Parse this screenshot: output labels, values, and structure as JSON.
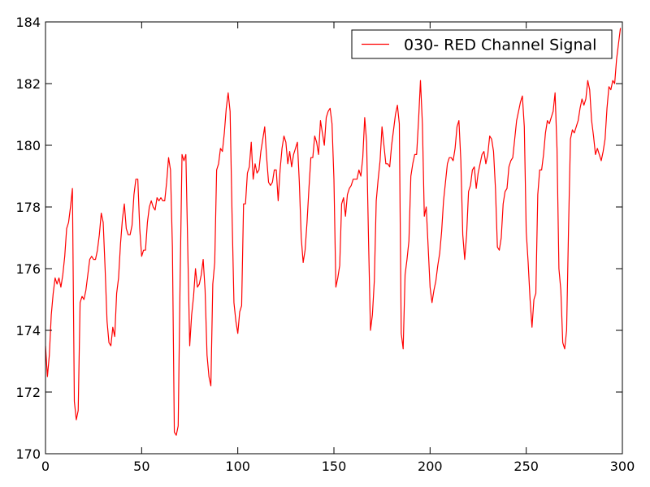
{
  "chart_data": {
    "type": "line",
    "title": "",
    "xlabel": "",
    "ylabel": "",
    "xlim": [
      0,
      300
    ],
    "ylim": [
      170,
      184
    ],
    "xticks": [
      0,
      50,
      100,
      150,
      200,
      250,
      300
    ],
    "yticks": [
      170,
      172,
      174,
      176,
      178,
      180,
      182,
      184
    ],
    "grid": false,
    "legend_position": "top-right",
    "series": [
      {
        "name": "030- RED Channel Signal",
        "color": "#ff0000",
        "x": [
          0,
          1,
          2,
          3,
          4,
          5,
          6,
          7,
          8,
          9,
          10,
          11,
          12,
          13,
          14,
          15,
          16,
          17,
          18,
          19,
          20,
          21,
          22,
          23,
          24,
          25,
          26,
          27,
          28,
          29,
          30,
          31,
          32,
          33,
          34,
          35,
          36,
          37,
          38,
          39,
          40,
          41,
          42,
          43,
          44,
          45,
          46,
          47,
          48,
          49,
          50,
          51,
          52,
          53,
          54,
          55,
          56,
          57,
          58,
          59,
          60,
          61,
          62,
          63,
          64,
          65,
          66,
          67,
          68,
          69,
          70,
          71,
          72,
          73,
          74,
          75,
          76,
          77,
          78,
          79,
          80,
          81,
          82,
          83,
          84,
          85,
          86,
          87,
          88,
          89,
          90,
          91,
          92,
          93,
          94,
          95,
          96,
          97,
          98,
          99,
          100,
          101,
          102,
          103,
          104,
          105,
          106,
          107,
          108,
          109,
          110,
          111,
          112,
          113,
          114,
          115,
          116,
          117,
          118,
          119,
          120,
          121,
          122,
          123,
          124,
          125,
          126,
          127,
          128,
          129,
          130,
          131,
          132,
          133,
          134,
          135,
          136,
          137,
          138,
          139,
          140,
          141,
          142,
          143,
          144,
          145,
          146,
          147,
          148,
          149,
          150,
          151,
          152,
          153,
          154,
          155,
          156,
          157,
          158,
          159,
          160,
          161,
          162,
          163,
          164,
          165,
          166,
          167,
          168,
          169,
          170,
          171,
          172,
          173,
          174,
          175,
          176,
          177,
          178,
          179,
          180,
          181,
          182,
          183,
          184,
          185,
          186,
          187,
          188,
          189,
          190,
          191,
          192,
          193,
          194,
          195,
          196,
          197,
          198,
          199,
          200,
          201,
          202,
          203,
          204,
          205,
          206,
          207,
          208,
          209,
          210,
          211,
          212,
          213,
          214,
          215,
          216,
          217,
          218,
          219,
          220,
          221,
          222,
          223,
          224,
          225,
          226,
          227,
          228,
          229,
          230,
          231,
          232,
          233,
          234,
          235,
          236,
          237,
          238,
          239,
          240,
          241,
          242,
          243,
          244,
          245,
          246,
          247,
          248,
          249,
          250,
          251,
          252,
          253,
          254,
          255,
          256,
          257,
          258,
          259,
          260,
          261,
          262,
          263,
          264,
          265,
          266,
          267,
          268,
          269,
          270,
          271,
          272,
          273,
          274,
          275,
          276,
          277,
          278,
          279,
          280,
          281,
          282,
          283,
          284,
          285,
          286,
          287,
          288,
          289,
          290,
          291,
          292,
          293,
          294,
          295,
          296,
          297,
          298,
          299
        ],
        "values": [
          173.5,
          172.5,
          173.2,
          174.5,
          175.2,
          175.7,
          175.5,
          175.7,
          175.4,
          175.8,
          176.4,
          177.3,
          177.5,
          178.0,
          178.6,
          171.7,
          171.1,
          171.4,
          174.9,
          175.1,
          175.0,
          175.3,
          175.8,
          176.3,
          176.4,
          176.3,
          176.3,
          176.6,
          177.1,
          177.8,
          177.5,
          176.0,
          174.3,
          173.6,
          173.5,
          174.1,
          173.8,
          175.2,
          175.7,
          176.8,
          177.6,
          178.1,
          177.3,
          177.1,
          177.1,
          177.4,
          178.4,
          178.9,
          178.9,
          177.3,
          176.4,
          176.6,
          176.6,
          177.5,
          178.0,
          178.2,
          178.0,
          177.9,
          178.3,
          178.2,
          178.3,
          178.2,
          178.2,
          178.8,
          179.6,
          179.2,
          176.7,
          170.7,
          170.6,
          170.9,
          175.6,
          179.7,
          179.5,
          179.7,
          176.6,
          173.5,
          174.5,
          175.1,
          176.0,
          175.4,
          175.5,
          175.8,
          176.3,
          175.3,
          173.2,
          172.5,
          172.2,
          175.5,
          176.2,
          179.2,
          179.4,
          179.9,
          179.8,
          180.4,
          181.2,
          181.7,
          181.1,
          177.8,
          174.9,
          174.3,
          173.9,
          174.6,
          174.8,
          178.1,
          178.1,
          179.1,
          179.3,
          180.1,
          178.9,
          179.4,
          179.1,
          179.2,
          179.8,
          180.2,
          180.6,
          179.6,
          178.8,
          178.7,
          178.8,
          179.2,
          179.2,
          178.2,
          179.2,
          179.9,
          180.3,
          180.1,
          179.4,
          179.8,
          179.3,
          179.7,
          179.9,
          180.1,
          178.8,
          177.0,
          176.2,
          176.6,
          177.5,
          178.6,
          179.6,
          179.6,
          180.3,
          180.1,
          179.7,
          180.8,
          180.4,
          180.0,
          180.9,
          181.1,
          181.2,
          180.7,
          178.9,
          175.4,
          175.7,
          176.1,
          178.1,
          178.3,
          177.7,
          178.4,
          178.6,
          178.7,
          178.9,
          178.9,
          178.9,
          179.2,
          179.0,
          179.6,
          180.9,
          180.1,
          176.9,
          174.0,
          174.5,
          175.6,
          178.2,
          178.9,
          179.5,
          180.6,
          180.0,
          179.4,
          179.4,
          179.3,
          180.0,
          180.5,
          181.0,
          181.3,
          180.7,
          173.9,
          173.4,
          175.8,
          176.3,
          176.9,
          179.0,
          179.4,
          179.7,
          179.7,
          180.8,
          182.1,
          180.7,
          177.7,
          178.0,
          176.7,
          175.4,
          174.9,
          175.3,
          175.6,
          176.1,
          176.5,
          177.2,
          178.2,
          178.8,
          179.4,
          179.6,
          179.6,
          179.5,
          179.9,
          180.6,
          180.8,
          179.5,
          177.1,
          176.3,
          177.1,
          178.5,
          178.7,
          179.2,
          179.3,
          178.6,
          179.1,
          179.4,
          179.7,
          179.8,
          179.4,
          179.7,
          180.3,
          180.2,
          179.8,
          178.6,
          176.7,
          176.6,
          177.0,
          178.1,
          178.5,
          178.6,
          179.3,
          179.5,
          179.6,
          180.2,
          180.8,
          181.1,
          181.4,
          181.6,
          180.6,
          177.2,
          176.2,
          175.0,
          174.1,
          175.0,
          175.2,
          178.4,
          179.2,
          179.2,
          179.7,
          180.4,
          180.8,
          180.7,
          180.9,
          181.1,
          181.7,
          179.9,
          176.0,
          175.3,
          173.6,
          173.4,
          174.0,
          177.3,
          180.2,
          180.5,
          180.4,
          180.6,
          180.8,
          181.2,
          181.5,
          181.3,
          181.5,
          182.1,
          181.8,
          180.8,
          180.3,
          179.7,
          179.9,
          179.7,
          179.5,
          179.8,
          180.2,
          181.2,
          181.9,
          181.8,
          182.1,
          182.0,
          182.8,
          183.3,
          183.8
        ]
      }
    ]
  }
}
